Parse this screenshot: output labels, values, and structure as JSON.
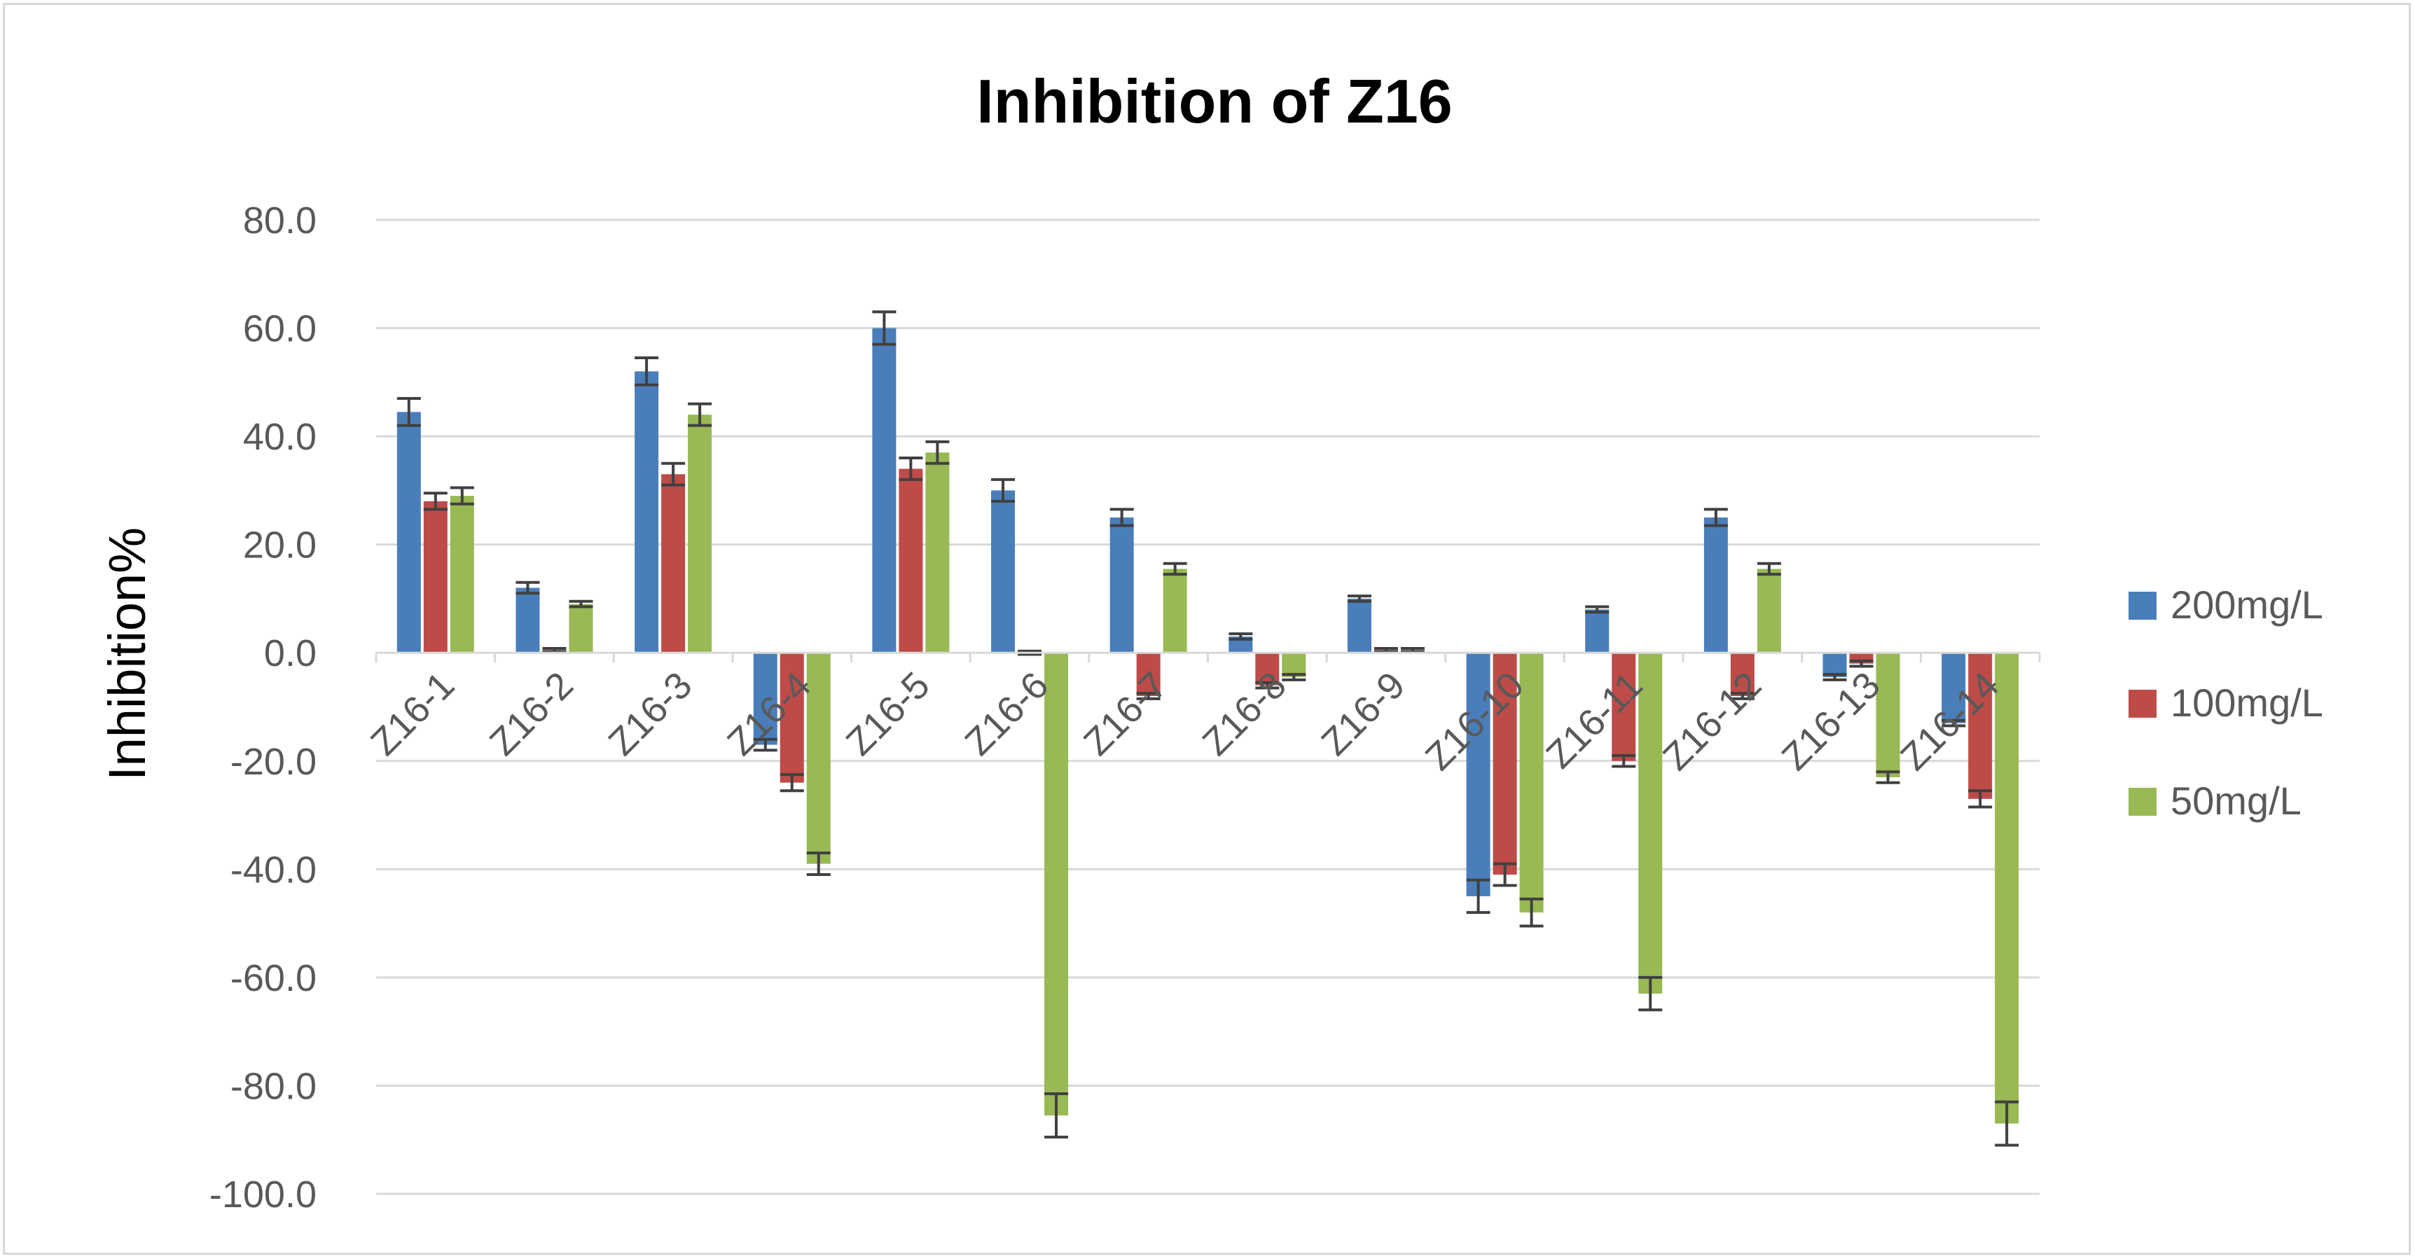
{
  "chart_data": {
    "type": "bar",
    "title": "Inhibition of Z16",
    "xlabel": "",
    "ylabel": "Inhibition%",
    "ylim": [
      -100,
      80
    ],
    "yticks": [
      80,
      60,
      40,
      20,
      0,
      -20,
      -40,
      -60,
      -80,
      -100
    ],
    "ytick_labels": [
      "80.0",
      "60.0",
      "40.0",
      "20.0",
      "0.0",
      "-20.0",
      "-40.0",
      "-60.0",
      "-80.0",
      "-100.0"
    ],
    "grid": true,
    "legend_position": "right",
    "categories": [
      "Z16-1",
      "Z16-2",
      "Z16-3",
      "Z16-4",
      "Z16-5",
      "Z16-6",
      "Z16-7",
      "Z16-8",
      "Z16-9",
      "Z16-10",
      "Z16-11",
      "Z16-12",
      "Z16-13",
      "Z16-14"
    ],
    "series": [
      {
        "name": "200mg/L",
        "color": "#4a7ebb",
        "values": [
          44.5,
          12,
          52,
          -17,
          60,
          30,
          25,
          3,
          10,
          -45,
          8,
          25,
          -4.5,
          -13
        ],
        "errors": [
          2.5,
          1,
          2.5,
          1,
          3,
          2,
          1.5,
          0.5,
          0.5,
          3,
          0.5,
          1.5,
          0.5,
          0.5
        ]
      },
      {
        "name": "100mg/L",
        "color": "#be4b48",
        "values": [
          28,
          0.5,
          33,
          -24,
          34,
          0,
          -8,
          -6,
          0.5,
          -41,
          -20,
          -8,
          -2,
          -27
        ],
        "errors": [
          1.5,
          0.3,
          2,
          1.5,
          2,
          0.3,
          0.5,
          0.5,
          0.3,
          2,
          1,
          0.5,
          0.5,
          1.5
        ]
      },
      {
        "name": "50mg/L",
        "color": "#98b954",
        "values": [
          29,
          9,
          44,
          -39,
          37,
          -85.5,
          15.5,
          -4.5,
          0.5,
          -48,
          -63,
          15.5,
          -23,
          -87
        ],
        "errors": [
          1.5,
          0.5,
          2,
          2,
          2,
          4,
          1,
          0.5,
          0.3,
          2.5,
          3,
          1,
          1,
          4
        ]
      }
    ]
  }
}
